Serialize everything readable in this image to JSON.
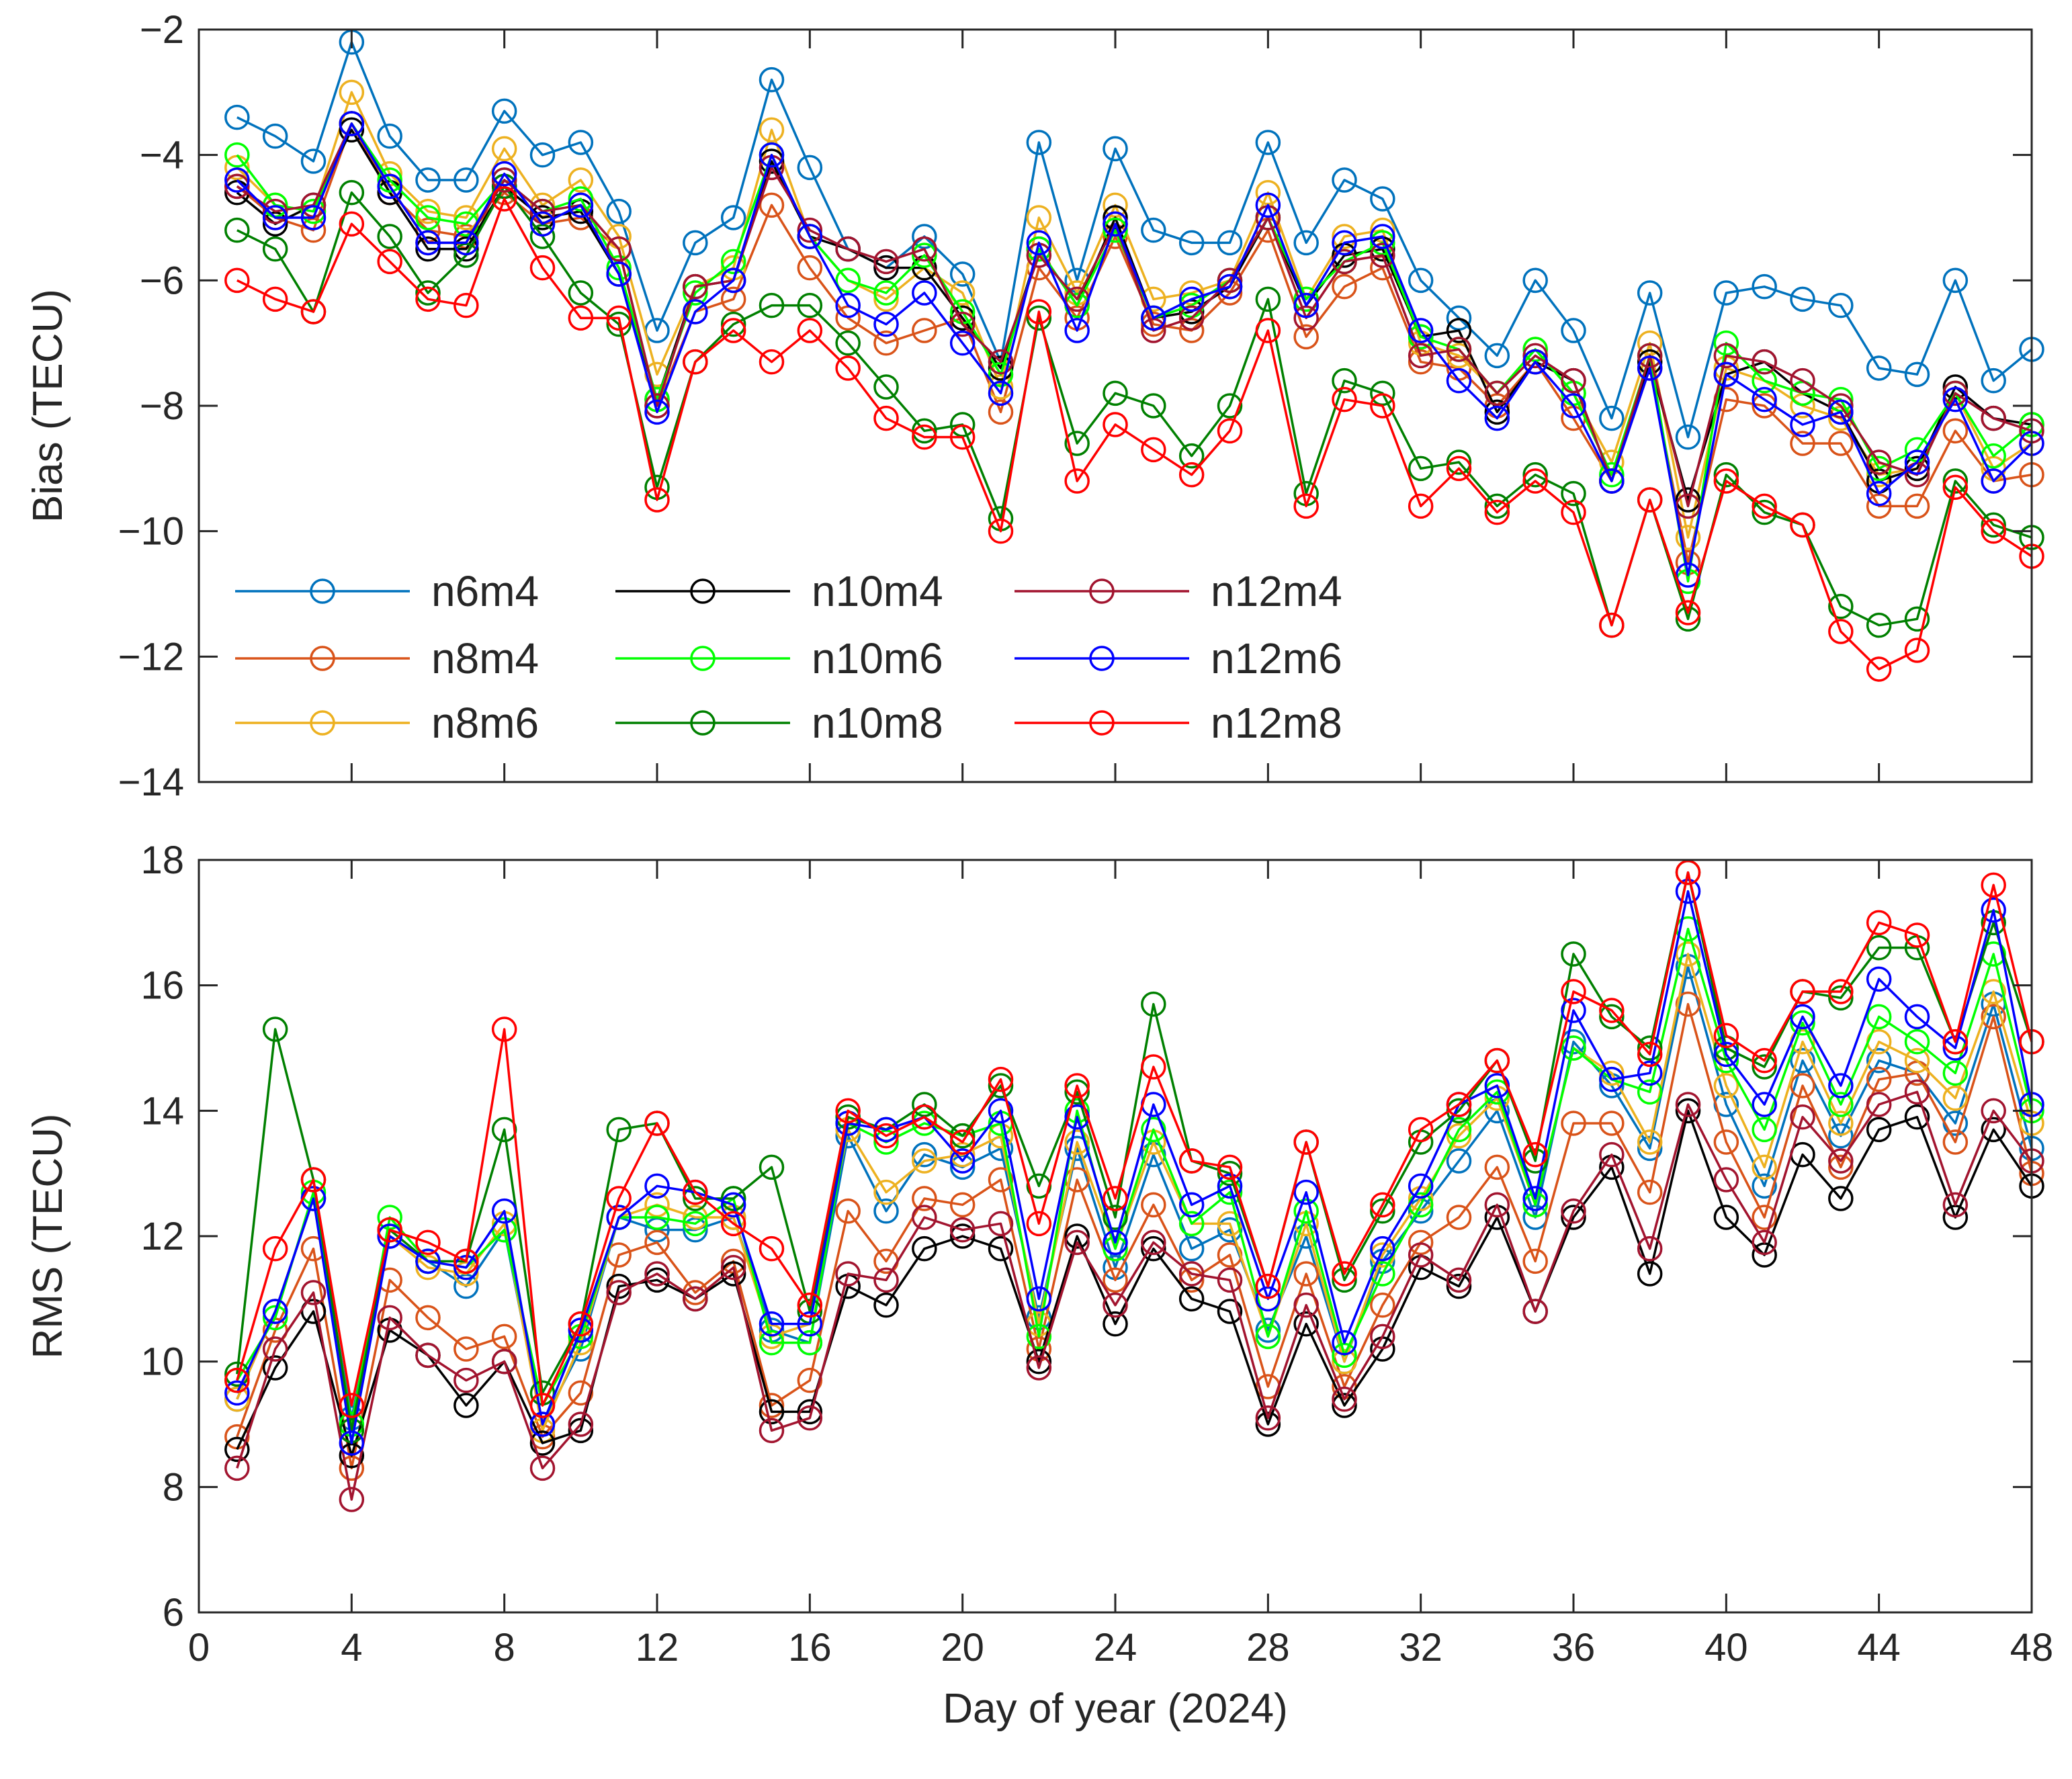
{
  "chart_data": [
    {
      "type": "line",
      "ylabel": "Bias (TECU)",
      "xlabel": "",
      "xlim": [
        0,
        48
      ],
      "ylim": [
        -14,
        -2
      ],
      "xticks": [
        0,
        4,
        8,
        12,
        16,
        20,
        24,
        28,
        32,
        36,
        40,
        44,
        48
      ],
      "yticks": [
        -14,
        -12,
        -10,
        -8,
        -6,
        -4,
        -2
      ],
      "legend": {
        "placement": "lower-left",
        "columns": 3
      },
      "x": [
        1,
        2,
        3,
        4,
        5,
        6,
        7,
        8,
        9,
        10,
        11,
        12,
        13,
        14,
        15,
        16,
        17,
        18,
        19,
        20,
        21,
        22,
        23,
        24,
        25,
        26,
        27,
        28,
        29,
        30,
        31,
        32,
        33,
        34,
        35,
        36,
        37,
        38,
        39,
        40,
        41,
        42,
        43,
        44,
        45,
        46,
        47,
        48
      ],
      "series": [
        {
          "name": "n6m4",
          "color": "#0072BD",
          "values": [
            -3.4,
            -3.7,
            -4.1,
            -2.2,
            -3.7,
            -4.4,
            -4.4,
            -3.3,
            -4.0,
            -3.8,
            -4.9,
            -6.8,
            -5.4,
            -5.0,
            -2.8,
            -4.2,
            -5.5,
            -5.8,
            -5.3,
            -5.9,
            -7.3,
            -3.8,
            -6.0,
            -3.9,
            -5.2,
            -5.4,
            -5.4,
            -3.8,
            -5.4,
            -4.4,
            -4.7,
            -6.0,
            -6.6,
            -7.2,
            -6.0,
            -6.8,
            -8.2,
            -6.2,
            -8.5,
            -6.2,
            -6.1,
            -6.3,
            -6.4,
            -7.4,
            -7.5,
            -6.0,
            -7.6,
            -7.1
          ]
        },
        {
          "name": "n8m4",
          "color": "#D95319",
          "values": [
            -4.5,
            -5.0,
            -5.2,
            -3.5,
            -4.6,
            -5.2,
            -5.3,
            -4.6,
            -5.1,
            -5.0,
            -5.5,
            -8.0,
            -6.5,
            -6.3,
            -4.8,
            -5.8,
            -6.6,
            -7.0,
            -6.8,
            -6.6,
            -8.1,
            -5.8,
            -6.6,
            -5.3,
            -6.7,
            -6.8,
            -6.2,
            -5.2,
            -6.9,
            -6.1,
            -5.8,
            -7.3,
            -7.4,
            -8.0,
            -7.3,
            -8.2,
            -9.2,
            -7.4,
            -10.5,
            -7.9,
            -8.0,
            -8.6,
            -8.6,
            -9.6,
            -9.6,
            -8.4,
            -9.2,
            -9.1
          ]
        },
        {
          "name": "n8m6",
          "color": "#EDB120",
          "values": [
            -4.2,
            -4.8,
            -4.9,
            -3.0,
            -4.3,
            -4.9,
            -5.0,
            -3.9,
            -4.8,
            -4.4,
            -5.3,
            -7.5,
            -6.1,
            -5.8,
            -3.6,
            -5.3,
            -6.0,
            -6.3,
            -5.8,
            -6.2,
            -7.7,
            -5.0,
            -6.2,
            -4.8,
            -6.3,
            -6.2,
            -6.0,
            -4.6,
            -6.3,
            -5.3,
            -5.2,
            -7.0,
            -7.2,
            -7.8,
            -7.1,
            -7.8,
            -8.9,
            -7.0,
            -10.1,
            -7.4,
            -7.6,
            -8.0,
            -8.2,
            -9.1,
            -9.0,
            -7.8,
            -9.0,
            -8.6
          ]
        },
        {
          "name": "n10m4",
          "color": "#000000",
          "values": [
            -4.6,
            -5.1,
            -4.8,
            -3.6,
            -4.6,
            -5.5,
            -5.5,
            -4.5,
            -5.0,
            -4.9,
            -5.9,
            -7.9,
            -6.1,
            -6.0,
            -4.1,
            -5.3,
            -5.5,
            -5.8,
            -5.8,
            -6.6,
            -7.4,
            -5.5,
            -6.4,
            -5.0,
            -6.6,
            -6.5,
            -6.1,
            -5.0,
            -6.4,
            -5.6,
            -5.5,
            -6.9,
            -6.8,
            -8.1,
            -7.3,
            -7.6,
            -9.2,
            -7.3,
            -9.5,
            -7.5,
            -7.3,
            -7.8,
            -8.1,
            -9.2,
            -9.0,
            -7.7,
            -8.2,
            -8.3
          ]
        },
        {
          "name": "n10m6",
          "color": "#00FF00",
          "values": [
            -4.0,
            -4.8,
            -4.9,
            -3.5,
            -4.4,
            -5.0,
            -5.1,
            -4.4,
            -4.9,
            -4.7,
            -5.8,
            -7.9,
            -6.2,
            -5.7,
            -4.0,
            -5.3,
            -6.0,
            -6.2,
            -5.6,
            -6.5,
            -7.5,
            -5.5,
            -6.4,
            -5.2,
            -6.6,
            -6.4,
            -6.0,
            -5.0,
            -6.3,
            -5.7,
            -5.4,
            -6.9,
            -7.1,
            -7.8,
            -7.1,
            -7.8,
            -9.1,
            -7.2,
            -10.8,
            -7.0,
            -7.6,
            -7.8,
            -7.9,
            -9.0,
            -8.7,
            -7.8,
            -8.8,
            -8.3
          ]
        },
        {
          "name": "n10m8",
          "color": "#008000",
          "values": [
            -5.2,
            -5.5,
            -6.5,
            -4.6,
            -5.3,
            -6.2,
            -5.6,
            -4.5,
            -5.3,
            -6.2,
            -6.7,
            -9.3,
            -7.3,
            -6.7,
            -6.4,
            -6.4,
            -7.0,
            -7.7,
            -8.4,
            -8.3,
            -9.8,
            -6.6,
            -8.6,
            -7.8,
            -8.0,
            -8.8,
            -8.0,
            -6.3,
            -9.4,
            -7.6,
            -7.8,
            -9.0,
            -8.9,
            -9.6,
            -9.1,
            -9.4,
            -11.5,
            -9.5,
            -11.4,
            -9.1,
            -9.7,
            -9.9,
            -11.2,
            -11.5,
            -11.4,
            -9.2,
            -9.9,
            -10.1
          ]
        },
        {
          "name": "n12m4",
          "color": "#A2142F",
          "values": [
            -4.5,
            -4.9,
            -4.8,
            -3.5,
            -4.5,
            -5.4,
            -5.4,
            -4.4,
            -4.9,
            -4.8,
            -5.5,
            -8.0,
            -6.1,
            -6.0,
            -4.2,
            -5.2,
            -5.5,
            -5.7,
            -5.5,
            -6.7,
            -7.3,
            -5.6,
            -6.3,
            -5.1,
            -6.8,
            -6.6,
            -6.0,
            -5.0,
            -6.6,
            -5.7,
            -5.6,
            -7.2,
            -7.1,
            -7.8,
            -7.2,
            -7.6,
            -9.2,
            -7.2,
            -9.6,
            -7.2,
            -7.3,
            -7.6,
            -8.0,
            -8.9,
            -9.1,
            -7.8,
            -8.2,
            -8.4
          ]
        },
        {
          "name": "n12m6",
          "color": "#0000FF",
          "values": [
            -4.4,
            -5.0,
            -5.0,
            -3.5,
            -4.5,
            -5.4,
            -5.4,
            -4.3,
            -5.1,
            -4.8,
            -5.9,
            -8.1,
            -6.5,
            -6.0,
            -4.0,
            -5.3,
            -6.4,
            -6.7,
            -6.2,
            -7.0,
            -7.8,
            -5.4,
            -6.8,
            -5.1,
            -6.6,
            -6.3,
            -6.1,
            -4.8,
            -6.4,
            -5.4,
            -5.3,
            -6.8,
            -7.6,
            -8.2,
            -7.3,
            -8.0,
            -9.2,
            -7.4,
            -10.7,
            -7.5,
            -7.9,
            -8.3,
            -8.1,
            -9.4,
            -8.9,
            -7.9,
            -9.2,
            -8.6
          ]
        },
        {
          "name": "n12m8",
          "color": "#FF0000",
          "values": [
            -6.0,
            -6.3,
            -6.5,
            -5.1,
            -5.7,
            -6.3,
            -6.4,
            -4.7,
            -5.8,
            -6.6,
            -6.6,
            -9.5,
            -7.3,
            -6.8,
            -7.3,
            -6.8,
            -7.4,
            -8.2,
            -8.5,
            -8.5,
            -10.0,
            -6.5,
            -9.2,
            -8.3,
            -8.7,
            -9.1,
            -8.4,
            -6.8,
            -9.6,
            -7.9,
            -8.0,
            -9.6,
            -9.0,
            -9.7,
            -9.2,
            -9.7,
            -11.5,
            -9.5,
            -11.3,
            -9.2,
            -9.6,
            -9.9,
            -11.6,
            -12.2,
            -11.9,
            -9.3,
            -10.0,
            -10.4
          ]
        }
      ]
    },
    {
      "type": "line",
      "ylabel": "RMS (TECU)",
      "xlabel": "Day of year (2024)",
      "xlim": [
        0,
        48
      ],
      "ylim": [
        6,
        18
      ],
      "xticks": [
        0,
        4,
        8,
        12,
        16,
        20,
        24,
        28,
        32,
        36,
        40,
        44,
        48
      ],
      "yticks": [
        6,
        8,
        10,
        12,
        14,
        16,
        18
      ],
      "x": [
        1,
        2,
        3,
        4,
        5,
        6,
        7,
        8,
        9,
        10,
        11,
        12,
        13,
        14,
        15,
        16,
        17,
        18,
        19,
        20,
        21,
        22,
        23,
        24,
        25,
        26,
        27,
        28,
        29,
        30,
        31,
        32,
        33,
        34,
        35,
        36,
        37,
        38,
        39,
        40,
        41,
        42,
        43,
        44,
        45,
        46,
        47,
        48
      ],
      "series": [
        {
          "name": "n6m4",
          "color": "#0072BD",
          "values": [
            9.4,
            10.8,
            12.6,
            9.1,
            12.0,
            11.6,
            11.2,
            12.1,
            9.0,
            10.2,
            12.3,
            12.1,
            12.1,
            12.3,
            10.5,
            10.3,
            13.6,
            12.4,
            13.3,
            13.1,
            13.4,
            10.7,
            13.4,
            11.5,
            13.3,
            11.8,
            12.1,
            10.5,
            12.0,
            10.0,
            11.6,
            12.4,
            13.2,
            14.0,
            12.3,
            15.1,
            14.4,
            13.4,
            16.3,
            14.1,
            12.8,
            14.8,
            13.6,
            14.8,
            14.6,
            13.8,
            15.7,
            13.4
          ]
        },
        {
          "name": "n8m4",
          "color": "#D95319",
          "values": [
            8.8,
            10.5,
            11.8,
            8.3,
            11.3,
            10.7,
            10.2,
            10.4,
            8.8,
            9.5,
            11.7,
            11.9,
            11.1,
            11.6,
            9.3,
            9.7,
            12.4,
            11.6,
            12.6,
            12.5,
            12.9,
            10.2,
            12.9,
            11.3,
            12.5,
            11.3,
            11.7,
            9.6,
            11.4,
            9.6,
            10.9,
            11.9,
            12.3,
            13.1,
            11.6,
            13.8,
            13.8,
            12.7,
            15.7,
            13.5,
            12.3,
            14.4,
            13.1,
            14.5,
            14.6,
            13.5,
            15.5,
            13.0
          ]
        },
        {
          "name": "n8m6",
          "color": "#EDB120",
          "values": [
            9.4,
            10.8,
            12.6,
            8.9,
            12.0,
            11.5,
            11.4,
            12.2,
            8.9,
            10.3,
            12.3,
            12.5,
            12.3,
            12.3,
            10.4,
            10.6,
            13.7,
            12.7,
            13.2,
            13.3,
            13.6,
            10.6,
            13.5,
            11.8,
            13.5,
            12.2,
            12.2,
            10.4,
            12.2,
            10.0,
            11.7,
            12.6,
            13.6,
            14.2,
            12.5,
            15.0,
            14.6,
            13.5,
            16.5,
            14.4,
            13.1,
            15.1,
            13.8,
            15.1,
            14.8,
            14.2,
            15.9,
            13.8
          ]
        },
        {
          "name": "n10m4",
          "color": "#000000",
          "values": [
            8.6,
            9.9,
            10.8,
            8.5,
            10.5,
            10.1,
            9.3,
            10.0,
            8.7,
            8.9,
            11.2,
            11.3,
            11.0,
            11.4,
            9.2,
            9.2,
            11.2,
            10.9,
            11.8,
            12.0,
            11.8,
            10.0,
            12.0,
            10.6,
            11.8,
            11.0,
            10.8,
            9.0,
            10.6,
            9.3,
            10.2,
            11.5,
            11.2,
            12.3,
            10.8,
            12.3,
            13.1,
            11.4,
            14.0,
            12.3,
            11.7,
            13.3,
            12.6,
            13.7,
            13.9,
            12.3,
            13.7,
            12.8
          ]
        },
        {
          "name": "n10m6",
          "color": "#00FF00",
          "values": [
            9.7,
            10.7,
            12.7,
            9.0,
            12.3,
            11.6,
            11.5,
            12.1,
            9.3,
            10.4,
            12.3,
            12.3,
            12.2,
            12.6,
            10.3,
            10.3,
            13.8,
            13.5,
            13.8,
            13.6,
            13.8,
            10.4,
            14.0,
            11.8,
            13.7,
            12.2,
            12.7,
            10.4,
            12.4,
            10.1,
            11.4,
            12.5,
            13.7,
            14.3,
            12.5,
            15.0,
            14.5,
            14.3,
            16.9,
            14.8,
            13.7,
            15.4,
            14.1,
            15.5,
            15.1,
            14.6,
            16.5,
            14.0
          ]
        },
        {
          "name": "n10m8",
          "color": "#008000",
          "values": [
            9.8,
            15.3,
            12.9,
            8.9,
            12.1,
            11.6,
            11.6,
            13.7,
            9.5,
            10.6,
            13.7,
            13.8,
            12.6,
            12.6,
            13.1,
            10.8,
            13.9,
            13.7,
            14.1,
            13.6,
            14.4,
            12.8,
            14.3,
            12.3,
            15.7,
            13.2,
            13.0,
            11.2,
            13.5,
            11.3,
            12.4,
            13.5,
            14.0,
            14.8,
            13.2,
            16.5,
            15.5,
            15.0,
            17.8,
            15.0,
            14.7,
            15.9,
            15.8,
            16.6,
            16.6,
            15.1,
            17.0,
            15.1
          ]
        },
        {
          "name": "n12m4",
          "color": "#A2142F",
          "values": [
            8.3,
            10.2,
            11.1,
            7.8,
            10.7,
            10.1,
            9.7,
            10.0,
            8.3,
            9.0,
            11.1,
            11.4,
            11.0,
            11.5,
            8.9,
            9.1,
            11.4,
            11.3,
            12.3,
            12.1,
            12.2,
            9.9,
            11.9,
            10.9,
            11.9,
            11.4,
            11.3,
            9.1,
            10.9,
            9.4,
            10.4,
            11.7,
            11.3,
            12.5,
            10.8,
            12.4,
            13.3,
            11.8,
            14.1,
            12.9,
            11.9,
            13.9,
            13.2,
            14.1,
            14.3,
            12.5,
            14.0,
            13.2
          ]
        },
        {
          "name": "n12m6",
          "color": "#0000FF",
          "values": [
            9.5,
            10.8,
            12.6,
            8.7,
            12.0,
            11.6,
            11.5,
            12.4,
            9.0,
            10.5,
            12.3,
            12.8,
            12.7,
            12.5,
            10.6,
            10.6,
            13.8,
            13.7,
            13.9,
            13.2,
            14.0,
            11.0,
            13.9,
            11.9,
            14.1,
            12.5,
            12.8,
            11.0,
            12.7,
            10.3,
            11.8,
            12.8,
            14.1,
            14.4,
            12.6,
            15.6,
            14.5,
            14.6,
            17.5,
            14.9,
            14.1,
            15.5,
            14.4,
            16.1,
            15.5,
            15.0,
            17.2,
            14.1
          ]
        },
        {
          "name": "n12m8",
          "color": "#FF0000",
          "values": [
            9.7,
            11.8,
            12.9,
            9.3,
            12.1,
            11.9,
            11.6,
            15.3,
            9.3,
            10.6,
            12.6,
            13.8,
            12.7,
            12.2,
            11.8,
            10.9,
            14.0,
            13.6,
            13.9,
            13.5,
            14.5,
            12.2,
            14.4,
            12.6,
            14.7,
            13.2,
            13.1,
            11.2,
            13.5,
            11.4,
            12.5,
            13.7,
            14.1,
            14.8,
            13.3,
            15.9,
            15.6,
            14.9,
            17.8,
            15.2,
            14.8,
            15.9,
            15.9,
            17.0,
            16.8,
            15.1,
            17.6,
            15.1
          ]
        }
      ]
    }
  ]
}
